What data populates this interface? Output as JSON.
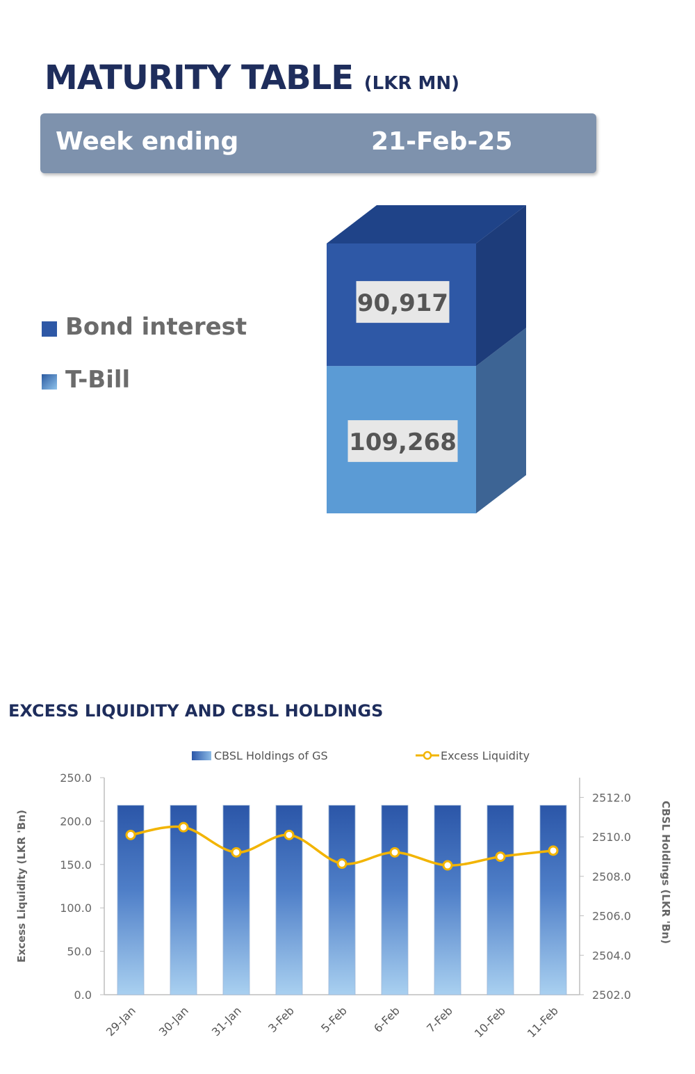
{
  "maturity": {
    "title": "MATURITY TABLE",
    "unit": "(LKR MN)",
    "week_label": "Week ending",
    "week_value": "21-Feb-25"
  },
  "chart_data": [
    {
      "type": "bar",
      "stacked": true,
      "title": "MATURITY TABLE (LKR MN)",
      "categories": [
        "21-Feb-25"
      ],
      "series": [
        {
          "name": "T-Bill",
          "values": [
            109268
          ],
          "label": "109,268",
          "color": "#5b9bd5"
        },
        {
          "name": "Bond interest",
          "values": [
            90917
          ],
          "label": "90,917",
          "color": "#2e58a6"
        }
      ]
    },
    {
      "type": "bar",
      "title": "EXCESS LIQUIDITY AND CBSL HOLDINGS",
      "categories": [
        "29-Jan",
        "30-Jan",
        "31-Jan",
        "3-Feb",
        "5-Feb",
        "6-Feb",
        "7-Feb",
        "10-Feb",
        "11-Feb"
      ],
      "series": [
        {
          "name": "CBSL Holdings of GS",
          "type": "bar",
          "axis": "right",
          "values": [
            2511.6,
            2511.6,
            2511.6,
            2511.6,
            2511.6,
            2511.6,
            2511.6,
            2511.6,
            2511.6
          ],
          "color": "#3a64b4"
        },
        {
          "name": "Excess Liquidity",
          "type": "line",
          "axis": "left",
          "values": [
            184.0,
            193.0,
            164.0,
            184.0,
            151.0,
            164.0,
            149.0,
            159.0,
            166.0
          ],
          "color": "#f2b400"
        }
      ],
      "ylabel": "Excess Liquidity (LKR 'Bn)",
      "ylabel_right": "CBSL Holdings (LKR 'Bn)",
      "ylim": [
        0,
        250
      ],
      "ylim_right": [
        2502,
        2513
      ],
      "yticks": [
        "0.0",
        "50.0",
        "100.0",
        "150.0",
        "200.0",
        "250.0"
      ],
      "yticks_right": [
        "2502.0",
        "2504.0",
        "2506.0",
        "2508.0",
        "2510.0",
        "2512.0"
      ],
      "legend": "top",
      "grid": false
    }
  ]
}
